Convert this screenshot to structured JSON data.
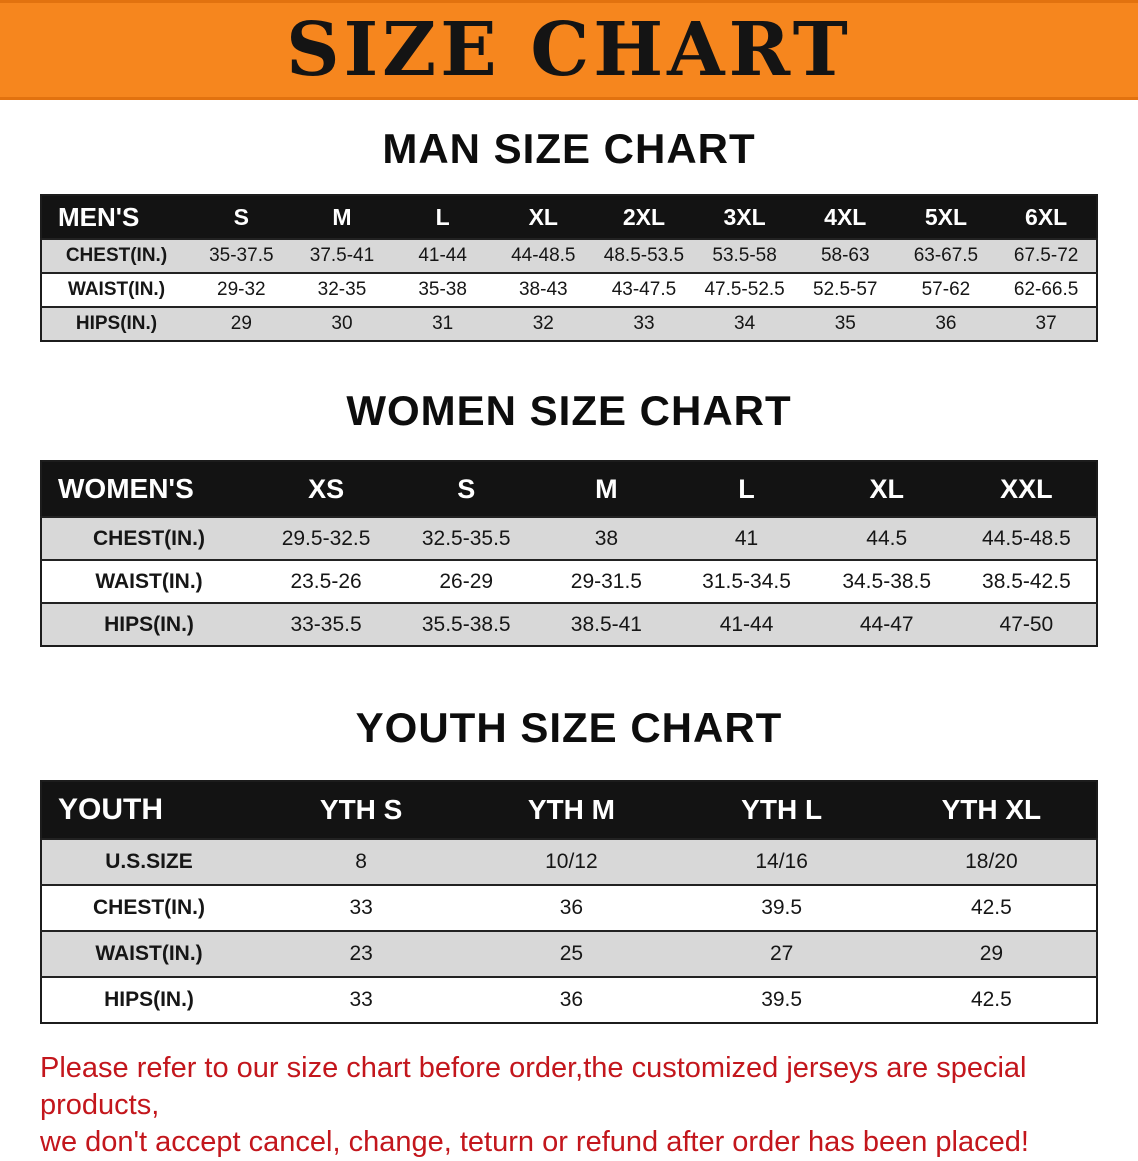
{
  "banner": {
    "title": "SIZE CHART",
    "background_color": "#f6861e",
    "text_color": "#141414"
  },
  "colors": {
    "table_header_bg": "#131313",
    "table_header_text": "#ffffff",
    "row_stripe_gray": "#d8d8d8",
    "footer_red": "#c3161c"
  },
  "sections": [
    {
      "heading": "MAN SIZE CHART",
      "table": {
        "corner": "MEN'S",
        "columns": [
          "S",
          "M",
          "L",
          "XL",
          "2XL",
          "3XL",
          "4XL",
          "5XL",
          "6XL"
        ],
        "rows": [
          {
            "label": "CHEST(IN.)",
            "values": [
              "35-37.5",
              "37.5-41",
              "41-44",
              "44-48.5",
              "48.5-53.5",
              "53.5-58",
              "58-63",
              "63-67.5",
              "67.5-72"
            ]
          },
          {
            "label": "WAIST(IN.)",
            "values": [
              "29-32",
              "32-35",
              "35-38",
              "38-43",
              "43-47.5",
              "47.5-52.5",
              "52.5-57",
              "57-62",
              "62-66.5"
            ]
          },
          {
            "label": "HIPS(IN.)",
            "values": [
              "29",
              "30",
              "31",
              "32",
              "33",
              "34",
              "35",
              "36",
              "37"
            ]
          }
        ]
      }
    },
    {
      "heading": "WOMEN SIZE CHART",
      "table": {
        "corner": "WOMEN'S",
        "columns": [
          "XS",
          "S",
          "M",
          "L",
          "XL",
          "XXL"
        ],
        "rows": [
          {
            "label": "CHEST(IN.)",
            "values": [
              "29.5-32.5",
              "32.5-35.5",
              "38",
              "41",
              "44.5",
              "44.5-48.5"
            ]
          },
          {
            "label": "WAIST(IN.)",
            "values": [
              "23.5-26",
              "26-29",
              "29-31.5",
              "31.5-34.5",
              "34.5-38.5",
              "38.5-42.5"
            ]
          },
          {
            "label": "HIPS(IN.)",
            "values": [
              "33-35.5",
              "35.5-38.5",
              "38.5-41",
              "41-44",
              "44-47",
              "47-50"
            ]
          }
        ]
      }
    },
    {
      "heading": "YOUTH SIZE CHART",
      "table": {
        "corner": "YOUTH",
        "columns": [
          "YTH S",
          "YTH M",
          "YTH L",
          "YTH XL"
        ],
        "rows": [
          {
            "label": "U.S.SIZE",
            "values": [
              "8",
              "10/12",
              "14/16",
              "18/20"
            ]
          },
          {
            "label": "CHEST(IN.)",
            "values": [
              "33",
              "36",
              "39.5",
              "42.5"
            ]
          },
          {
            "label": "WAIST(IN.)",
            "values": [
              "23",
              "25",
              "27",
              "29"
            ]
          },
          {
            "label": "HIPS(IN.)",
            "values": [
              "33",
              "36",
              "39.5",
              "42.5"
            ]
          }
        ]
      }
    }
  ],
  "footer": {
    "line1": "Please refer to our size chart before order,the customized jerseys are special products,",
    "line2": "we don't accept cancel, change, teturn or refund after order has been placed!"
  }
}
